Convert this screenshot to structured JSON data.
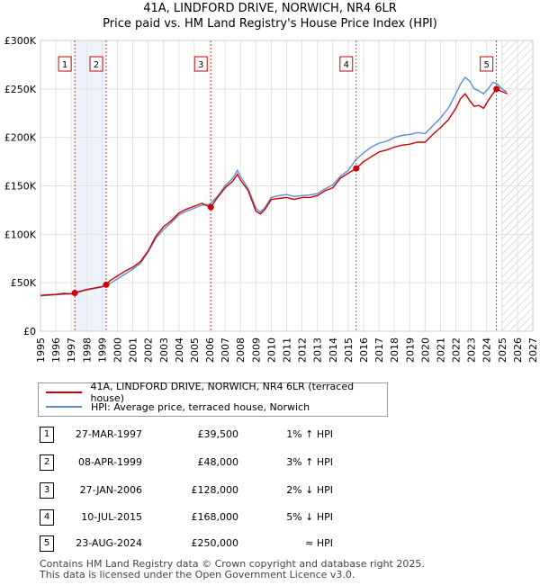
{
  "header": {
    "title_line1": "41A, LINDFORD DRIVE, NORWICH, NR4 6LR",
    "title_line2": "Price paid vs. HM Land Registry's House Price Index (HPI)"
  },
  "chart_data": {
    "type": "line",
    "ylim": [
      0,
      300000
    ],
    "xlim": [
      1995,
      2027
    ],
    "yticks": [
      0,
      50000,
      100000,
      150000,
      200000,
      250000,
      300000
    ],
    "ytick_labels": [
      "£0",
      "£50K",
      "£100K",
      "£150K",
      "£200K",
      "£250K",
      "£300K"
    ],
    "xticks": [
      1995,
      1996,
      1997,
      1998,
      1999,
      2000,
      2001,
      2002,
      2003,
      2004,
      2005,
      2006,
      2007,
      2008,
      2009,
      2010,
      2011,
      2012,
      2013,
      2014,
      2015,
      2016,
      2017,
      2018,
      2019,
      2020,
      2021,
      2022,
      2023,
      2024,
      2025,
      2026,
      2027
    ],
    "future_shade_from": 2025.0,
    "sale_bands": [
      [
        1997.23,
        1999.27
      ]
    ],
    "series": [
      {
        "name": "41A, LINDFORD DRIVE, NORWICH, NR4 6LR (terraced house)",
        "color": "#cc0000",
        "x": [
          1995.0,
          1995.5,
          1996.0,
          1996.5,
          1997.0,
          1997.23,
          1997.5,
          1998.0,
          1998.5,
          1999.0,
          1999.27,
          1999.5,
          2000.0,
          2000.5,
          2001.0,
          2001.5,
          2002.0,
          2002.5,
          2003.0,
          2003.5,
          2004.0,
          2004.5,
          2005.0,
          2005.5,
          2006.0,
          2006.07,
          2006.5,
          2007.0,
          2007.5,
          2007.8,
          2008.0,
          2008.5,
          2009.0,
          2009.3,
          2009.6,
          2010.0,
          2010.5,
          2011.0,
          2011.5,
          2012.0,
          2012.5,
          2013.0,
          2013.5,
          2014.0,
          2014.5,
          2015.0,
          2015.52,
          2016.0,
          2016.5,
          2017.0,
          2017.5,
          2018.0,
          2018.5,
          2019.0,
          2019.5,
          2020.0,
          2020.5,
          2021.0,
          2021.5,
          2022.0,
          2022.3,
          2022.6,
          2022.9,
          2023.2,
          2023.5,
          2023.8,
          2024.1,
          2024.4,
          2024.64,
          2024.9,
          2025.2,
          2025.35
        ],
        "y": [
          37000,
          37500,
          38000,
          39000,
          38500,
          39500,
          41000,
          43000,
          44500,
          46000,
          48000,
          52000,
          57000,
          62000,
          66000,
          72000,
          83000,
          98000,
          108000,
          114000,
          122000,
          126000,
          129000,
          132000,
          128000,
          128000,
          138000,
          148000,
          155000,
          162000,
          156000,
          145000,
          124000,
          121000,
          126000,
          136000,
          137000,
          138000,
          136000,
          138000,
          138000,
          140000,
          145000,
          148000,
          158000,
          163000,
          168000,
          175000,
          180000,
          185000,
          187000,
          190000,
          192000,
          193000,
          195000,
          195000,
          203000,
          210000,
          218000,
          230000,
          240000,
          245000,
          238000,
          232000,
          233000,
          230000,
          238000,
          245000,
          250000,
          248000,
          246000,
          245000
        ],
        "markers": [
          {
            "x": 1997.23,
            "y": 39500
          },
          {
            "x": 1999.27,
            "y": 48000
          },
          {
            "x": 2006.07,
            "y": 128000
          },
          {
            "x": 2015.52,
            "y": 168000
          },
          {
            "x": 2024.64,
            "y": 250000
          }
        ]
      },
      {
        "name": "HPI: Average price, terraced house, Norwich",
        "color": "#5b8ed1",
        "x": [
          1995.0,
          1995.5,
          1996.0,
          1996.5,
          1997.0,
          1997.5,
          1998.0,
          1998.5,
          1999.0,
          1999.5,
          2000.0,
          2000.5,
          2001.0,
          2001.5,
          2002.0,
          2002.5,
          2003.0,
          2003.5,
          2004.0,
          2004.5,
          2005.0,
          2005.5,
          2006.0,
          2006.5,
          2007.0,
          2007.5,
          2007.8,
          2008.0,
          2008.5,
          2009.0,
          2009.3,
          2009.6,
          2010.0,
          2010.5,
          2011.0,
          2011.5,
          2012.0,
          2012.5,
          2013.0,
          2013.5,
          2014.0,
          2014.5,
          2015.0,
          2015.5,
          2016.0,
          2016.5,
          2017.0,
          2017.5,
          2018.0,
          2018.5,
          2019.0,
          2019.5,
          2020.0,
          2020.5,
          2021.0,
          2021.5,
          2022.0,
          2022.3,
          2022.6,
          2022.9,
          2023.2,
          2023.5,
          2023.8,
          2024.1,
          2024.4,
          2024.7,
          2025.0,
          2025.3
        ],
        "y": [
          36500,
          37000,
          37500,
          38000,
          38500,
          40500,
          42500,
          44000,
          45500,
          49000,
          54000,
          59000,
          64000,
          70000,
          82000,
          96000,
          105000,
          112000,
          120000,
          124000,
          127000,
          130000,
          131000,
          139000,
          150000,
          158000,
          166000,
          160000,
          147000,
          127000,
          123000,
          128000,
          138000,
          140000,
          141000,
          139000,
          140000,
          140500,
          142000,
          147000,
          151000,
          160000,
          166000,
          177000,
          184000,
          190000,
          194000,
          196000,
          200000,
          202000,
          203000,
          205000,
          204000,
          212000,
          220000,
          230000,
          245000,
          255000,
          262000,
          258000,
          250000,
          248000,
          245000,
          250000,
          257000,
          255000,
          250000,
          247000
        ]
      }
    ]
  },
  "legend": {
    "items": [
      {
        "label": "41A, LINDFORD DRIVE, NORWICH, NR4 6LR (terraced house)",
        "color": "#cc0000"
      },
      {
        "label": "HPI: Average price, terraced house, Norwich",
        "color": "#5b8ed1"
      }
    ]
  },
  "transactions": [
    {
      "num": "1",
      "date": "27-MAR-1997",
      "price": "£39,500",
      "hpi": "1% ↑ HPI"
    },
    {
      "num": "2",
      "date": "08-APR-1999",
      "price": "£48,000",
      "hpi": "3% ↑ HPI"
    },
    {
      "num": "3",
      "date": "27-JAN-2006",
      "price": "£128,000",
      "hpi": "2% ↓ HPI"
    },
    {
      "num": "4",
      "date": "10-JUL-2015",
      "price": "£168,000",
      "hpi": "5% ↓ HPI"
    },
    {
      "num": "5",
      "date": "23-AUG-2024",
      "price": "£250,000",
      "hpi": "≈ HPI"
    }
  ],
  "footer": {
    "line1": "Contains HM Land Registry data © Crown copyright and database right 2025.",
    "line2": "This data is licensed under the Open Government Licence v3.0."
  }
}
